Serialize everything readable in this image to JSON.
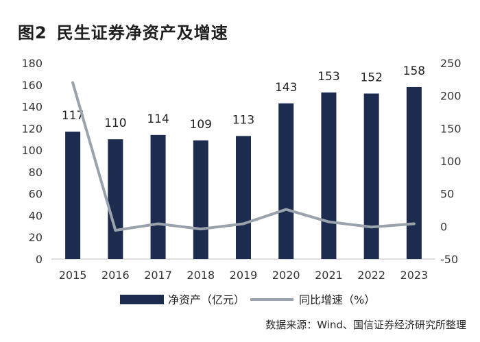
{
  "header": {
    "figure_number": "图2",
    "title": "民生证券净资产及增速"
  },
  "source": "数据来源：Wind、国信证券经济研究所整理",
  "chart_data": {
    "type": "bar",
    "categories": [
      "2015",
      "2016",
      "2017",
      "2018",
      "2019",
      "2020",
      "2021",
      "2022",
      "2023"
    ],
    "series": [
      {
        "name": "净资产（亿元）",
        "type": "bar",
        "axis": "left",
        "color": "#1d2b4f",
        "values": [
          117,
          110,
          114,
          109,
          113,
          143,
          153,
          152,
          158
        ]
      },
      {
        "name": "同比增速（%）",
        "type": "line",
        "axis": "right",
        "color": "#9aa3ad",
        "values": [
          220,
          -6,
          4,
          -4,
          4,
          26,
          7,
          -1,
          4
        ]
      }
    ],
    "ylim_left": [
      0,
      180
    ],
    "yticks_left": [
      "0",
      "20",
      "40",
      "60",
      "80",
      "100",
      "120",
      "140",
      "160",
      "180"
    ],
    "ylim_right": [
      -50,
      250
    ],
    "yticks_right": [
      "-50",
      "0",
      "50",
      "100",
      "150",
      "200",
      "250"
    ],
    "data_labels": [
      "117",
      "110",
      "114",
      "109",
      "113",
      "143",
      "153",
      "152",
      "158"
    ],
    "legend_position": "bottom",
    "grid": false
  }
}
